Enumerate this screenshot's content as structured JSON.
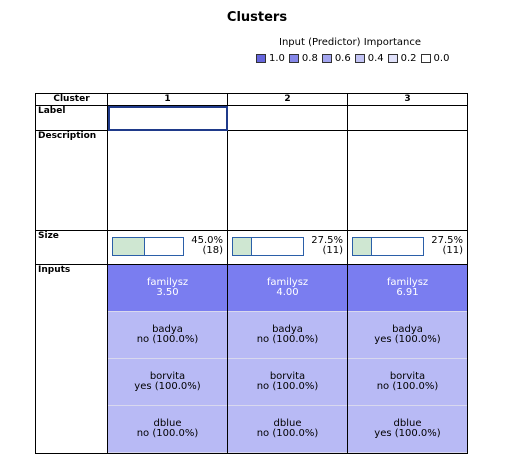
{
  "title": "Clusters",
  "importance": {
    "label": "Input (Predictor) Importance",
    "legend": [
      {
        "label": "1.0",
        "color": "#6666dd"
      },
      {
        "label": "0.8",
        "color": "#8587e8"
      },
      {
        "label": "0.6",
        "color": "#a3a5ef"
      },
      {
        "label": "0.4",
        "color": "#c2c3f4"
      },
      {
        "label": "0.2",
        "color": "#e0e1fa"
      },
      {
        "label": "0.0",
        "color": "#ffffff"
      }
    ]
  },
  "table": {
    "header": {
      "cluster": "Cluster",
      "c1": "1",
      "c2": "2",
      "c3": "3"
    },
    "rows": {
      "label": "Label",
      "description": "Description",
      "size": "Size",
      "inputs": "Inputs"
    },
    "sizes": [
      {
        "pct": "45.0%",
        "count": "(18)",
        "fill": 0.45
      },
      {
        "pct": "27.5%",
        "count": "(11)",
        "fill": 0.275
      },
      {
        "pct": "27.5%",
        "count": "(11)",
        "fill": 0.275
      }
    ],
    "inputs": [
      {
        "name": "familysz",
        "values": [
          "3.50",
          "4.00",
          "6.91"
        ]
      },
      {
        "name": "badya",
        "values": [
          "no (100.0%)",
          "no (100.0%)",
          "yes (100.0%)"
        ]
      },
      {
        "name": "borvita",
        "values": [
          "yes (100.0%)",
          "no (100.0%)",
          "no (100.0%)"
        ]
      },
      {
        "name": "dblue",
        "values": [
          "no (100.0%)",
          "no (100.0%)",
          "yes (100.0%)"
        ]
      }
    ]
  }
}
